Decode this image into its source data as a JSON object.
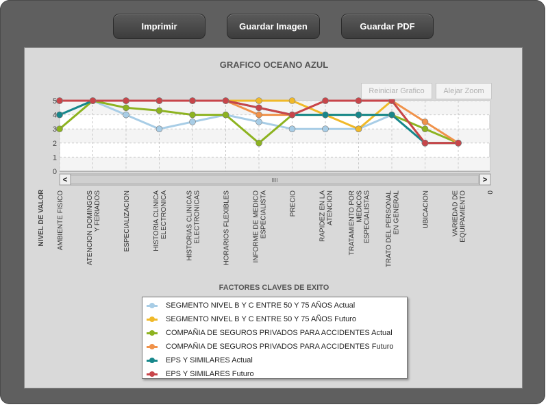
{
  "toolbar": {
    "print_label": "Imprimir",
    "save_image_label": "Guardar Imagen",
    "save_pdf_label": "Guardar PDF"
  },
  "zoom": {
    "reset_label": "Reiniciar Grafico",
    "zoom_out_label": "Alejar Zoom"
  },
  "scrollbar": {
    "left_arrow": "<",
    "right_arrow": ">",
    "grip": "IIII"
  },
  "chart_data": {
    "type": "line",
    "title": "GRAFICO OCEANO AZUL",
    "xlabel": "FACTORES CLAVES DE EXITO",
    "ylabel": "NIVEL DE VALOR",
    "ylim": [
      0,
      5
    ],
    "yticks": [
      "0",
      "1",
      "2",
      "3",
      "4",
      "5"
    ],
    "extra_tick": "0",
    "grid": true,
    "legend_position": "bottom",
    "categories": [
      [
        "AMBIENTE FISICO"
      ],
      [
        "ATENCION DOMINGOS",
        "Y FERIADOS"
      ],
      [
        "ESPECIALIZACION"
      ],
      [
        "HISTORIA CLINICA",
        "ELECTRONICA"
      ],
      [
        "HISTORIAS CLINICAS",
        "ELECTRONICAS"
      ],
      [
        "HORARIOS FLEXIBLES"
      ],
      [
        "INFORME DE MEDICO",
        "ESPECIALISTA"
      ],
      [
        "PRECIO"
      ],
      [
        "RAPIDEZ EN LA",
        "ATENCION"
      ],
      [
        "TRATAMIENTO POR",
        "MEDICOS",
        "ESPECIALISTAS"
      ],
      [
        "TRATO DEL PERSONAL",
        "EN GENERAL"
      ],
      [
        "UBICACION"
      ],
      [
        "VARIEDAD DE",
        "EQUIPAMIENTO"
      ]
    ],
    "series": [
      {
        "name": "SEGMENTO NIVEL B Y C ENTRE 50 Y 75 AÑOS Actual",
        "color": "#a8cde6",
        "values": [
          4,
          5,
          4,
          3,
          3.5,
          4,
          3.5,
          3,
          3,
          3,
          4,
          2,
          2
        ]
      },
      {
        "name": "SEGMENTO NIVEL B Y C ENTRE 50 Y 75 AÑOS Futuro",
        "color": "#f0b929",
        "values": [
          5,
          5,
          5,
          5,
          5,
          5,
          5,
          5,
          4,
          3,
          5,
          2,
          2
        ]
      },
      {
        "name": "COMPAÑIA DE SEGUROS PRIVADOS PARA ACCIDENTES Actual",
        "color": "#8db320",
        "values": [
          3,
          5,
          4.5,
          4.3,
          4,
          4,
          2,
          4,
          4,
          4,
          4,
          3,
          2
        ]
      },
      {
        "name": "COMPAÑIA DE SEGUROS PRIVADOS PARA ACCIDENTES Futuro",
        "color": "#f0924a",
        "values": [
          5,
          5,
          5,
          5,
          5,
          5,
          4,
          4,
          5,
          5,
          5,
          3.5,
          2
        ]
      },
      {
        "name": "EPS  Y SIMILARES Actual",
        "color": "#17878b",
        "values": [
          4,
          5,
          5,
          5,
          5,
          5,
          4.5,
          4,
          4,
          4,
          4,
          2,
          2
        ]
      },
      {
        "name": "EPS  Y SIMILARES Futuro",
        "color": "#c8454a",
        "values": [
          5,
          5,
          5,
          5,
          5,
          5,
          4.5,
          4,
          5,
          5,
          5,
          2,
          2
        ]
      }
    ]
  }
}
